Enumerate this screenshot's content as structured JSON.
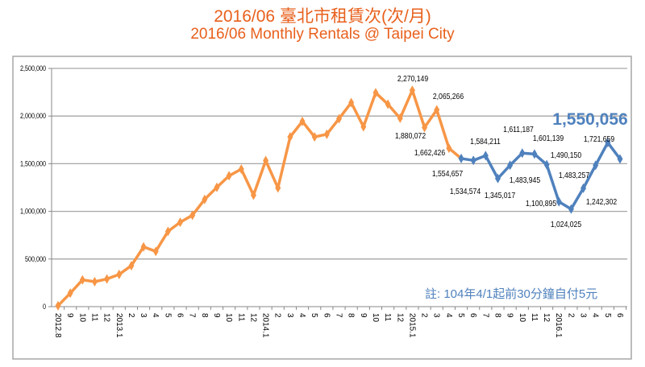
{
  "title": "2016/06 臺北市租賃次(次/月)",
  "subtitle": "2016/06 Monthly Rentals @ Taipei City",
  "note": "註: 104年4/1起前30分鐘自付5元",
  "colors": {
    "title": "#E8601C",
    "series_before": "#F79646",
    "series_after": "#4F81BD",
    "grid": "#A6A6A6"
  },
  "chart_data": {
    "type": "line",
    "title": "2016/06 臺北市租賃次(次/月)",
    "subtitle": "2016/06 Monthly Rentals @ Taipei City",
    "ylim": [
      0,
      2500000
    ],
    "yticks": [
      "0",
      "500,000",
      "1,000,000",
      "1,500,000",
      "2,000,000",
      "2,500,000"
    ],
    "ytick_values": [
      0,
      500000,
      1000000,
      1500000,
      2000000,
      2500000
    ],
    "grid": "horizontal",
    "categories": [
      "2012.8",
      "9",
      "10",
      "11",
      "12",
      "2013.1",
      "2",
      "3",
      "4",
      "5",
      "6",
      "7",
      "8",
      "9",
      "10",
      "11",
      "12",
      "2014.1",
      "2",
      "3",
      "4",
      "5",
      "6",
      "7",
      "8",
      "9",
      "10",
      "11",
      "12",
      "2015.1",
      "2",
      "3",
      "4",
      "5",
      "6",
      "7",
      "8",
      "9",
      "10",
      "11",
      "12",
      "2016.1",
      "2",
      "3",
      "4",
      "5",
      "6"
    ],
    "values": [
      10000,
      141000,
      281000,
      262000,
      290000,
      338000,
      430000,
      627000,
      580000,
      790000,
      886000,
      959000,
      1125000,
      1252000,
      1373000,
      1443000,
      1170000,
      1533000,
      1246000,
      1781000,
      1944000,
      1781000,
      1809000,
      1972000,
      2141000,
      1888000,
      2245000,
      2124000,
      1977000,
      2270149,
      1880072,
      2065266,
      1662426,
      1554657,
      1534574,
      1584211,
      1345017,
      1483945,
      1611187,
      1601139,
      1490150,
      1100895,
      1024025,
      1242302,
      1483257,
      1721659,
      1550056
    ],
    "series_split": {
      "before_color": "#F79646",
      "after_color": "#4F81BD",
      "after_starts_at": "2015.5"
    },
    "data_labels": [
      {
        "category": "2015.1",
        "text": "2,270,149"
      },
      {
        "category": "2015.2",
        "text": "1,880,072"
      },
      {
        "category": "2015.3",
        "text": "2,065,266"
      },
      {
        "category": "2015.4",
        "text": "1,662,426"
      },
      {
        "category": "2015.5",
        "text": "1,554,657"
      },
      {
        "category": "2015.6",
        "text": "1,534,574"
      },
      {
        "category": "2015.7",
        "text": "1,584,211"
      },
      {
        "category": "2015.8",
        "text": "1,345,017"
      },
      {
        "category": "2015.9",
        "text": "1,483,945"
      },
      {
        "category": "2015.10",
        "text": "1,611,187"
      },
      {
        "category": "2015.11",
        "text": "1,601,139"
      },
      {
        "category": "2015.12",
        "text": "1,490,150"
      },
      {
        "category": "2016.1",
        "text": "1,100,895"
      },
      {
        "category": "2016.2",
        "text": "1,024,025"
      },
      {
        "category": "2016.3",
        "text": "1,242,302"
      },
      {
        "category": "2016.4",
        "text": "1,483,257"
      },
      {
        "category": "2016.5",
        "text": "1,721,659"
      },
      {
        "category": "2016.6",
        "text": "1,550,056",
        "highlight": true
      }
    ]
  }
}
